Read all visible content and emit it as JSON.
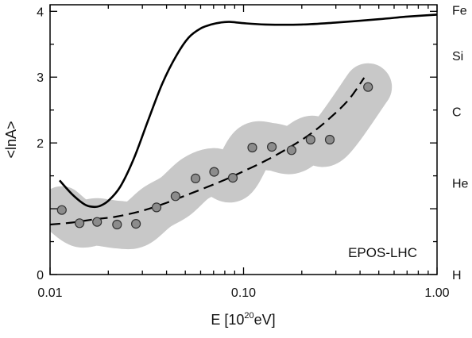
{
  "chart_data": {
    "type": "scatter",
    "annotation": "EPOS-LHC",
    "xlabel": {
      "main": "E [10",
      "sup": "20",
      "unit": "eV]"
    },
    "ylabel": "<lnA>",
    "x_scale": "log",
    "xlim": [
      0.01,
      1.0
    ],
    "ylim": [
      0,
      4.1
    ],
    "x_ticks": [
      {
        "value": 0.01,
        "label": "0.01"
      },
      {
        "value": 0.1,
        "label": "0.10"
      },
      {
        "value": 1.0,
        "label": "1.00"
      }
    ],
    "x_minor_ticks": [
      0.02,
      0.03,
      0.04,
      0.05,
      0.06,
      0.07,
      0.08,
      0.09,
      0.2,
      0.3,
      0.4,
      0.5,
      0.6,
      0.7,
      0.8,
      0.9
    ],
    "y_ticks": [
      {
        "value": 0,
        "label": "0"
      },
      {
        "value": 1,
        "label": ""
      },
      {
        "value": 2,
        "label": "2"
      },
      {
        "value": 3,
        "label": "3"
      },
      {
        "value": 4,
        "label": "4"
      }
    ],
    "y_minor_ticks": [
      0.5,
      1.5,
      2.5,
      3.5
    ],
    "right_axis_labels": [
      {
        "label": "Fe",
        "value": 4.02
      },
      {
        "label": "Si",
        "value": 3.33
      },
      {
        "label": "C",
        "value": 2.48
      },
      {
        "label": "He",
        "value": 1.39
      },
      {
        "label": "H",
        "value": 0.0
      }
    ],
    "grid": false,
    "colors": {
      "band": "#c8c8c8",
      "points_fill": "#8c8c8c",
      "points_stroke": "#333333",
      "lines": "#000000"
    },
    "series": [
      {
        "kind": "points",
        "x": [
          0.0115,
          0.0142,
          0.0175,
          0.0222,
          0.0278,
          0.0355,
          0.0445,
          0.0565,
          0.0705,
          0.088,
          0.111,
          0.14,
          0.177,
          0.222,
          0.279,
          0.44
        ],
        "y": [
          0.98,
          0.78,
          0.8,
          0.76,
          0.77,
          1.02,
          1.19,
          1.46,
          1.56,
          1.47,
          1.93,
          1.94,
          1.89,
          2.05,
          2.05,
          2.85
        ]
      },
      {
        "kind": "band",
        "x": [
          0.0115,
          0.0142,
          0.0175,
          0.0222,
          0.0278,
          0.0355,
          0.0445,
          0.0565,
          0.0705,
          0.088,
          0.111,
          0.14,
          0.177,
          0.222,
          0.279,
          0.44
        ],
        "y": [
          0.98,
          0.78,
          0.8,
          0.76,
          0.77,
          1.02,
          1.19,
          1.46,
          1.56,
          1.47,
          1.93,
          1.94,
          1.89,
          2.05,
          2.05,
          2.85
        ]
      },
      {
        "kind": "solid-line",
        "x": [
          0.0112,
          0.013,
          0.015,
          0.0165,
          0.018,
          0.02,
          0.023,
          0.027,
          0.032,
          0.038,
          0.045,
          0.052,
          0.06,
          0.068,
          0.076,
          0.085,
          0.1,
          0.13,
          0.2,
          0.3,
          0.5,
          0.7,
          1.0
        ],
        "y": [
          1.43,
          1.22,
          1.07,
          1.03,
          1.04,
          1.12,
          1.33,
          1.75,
          2.33,
          2.9,
          3.33,
          3.6,
          3.74,
          3.8,
          3.83,
          3.84,
          3.82,
          3.8,
          3.8,
          3.83,
          3.88,
          3.92,
          3.95
        ]
      },
      {
        "kind": "dashed-line",
        "x": [
          0.01,
          0.013,
          0.017,
          0.022,
          0.03,
          0.04,
          0.05,
          0.06,
          0.08,
          0.1,
          0.13,
          0.17,
          0.22,
          0.28,
          0.35,
          0.42
        ],
        "y": [
          0.76,
          0.79,
          0.84,
          0.88,
          0.97,
          1.09,
          1.2,
          1.29,
          1.44,
          1.57,
          1.73,
          1.92,
          2.13,
          2.38,
          2.66,
          2.99
        ]
      }
    ]
  }
}
